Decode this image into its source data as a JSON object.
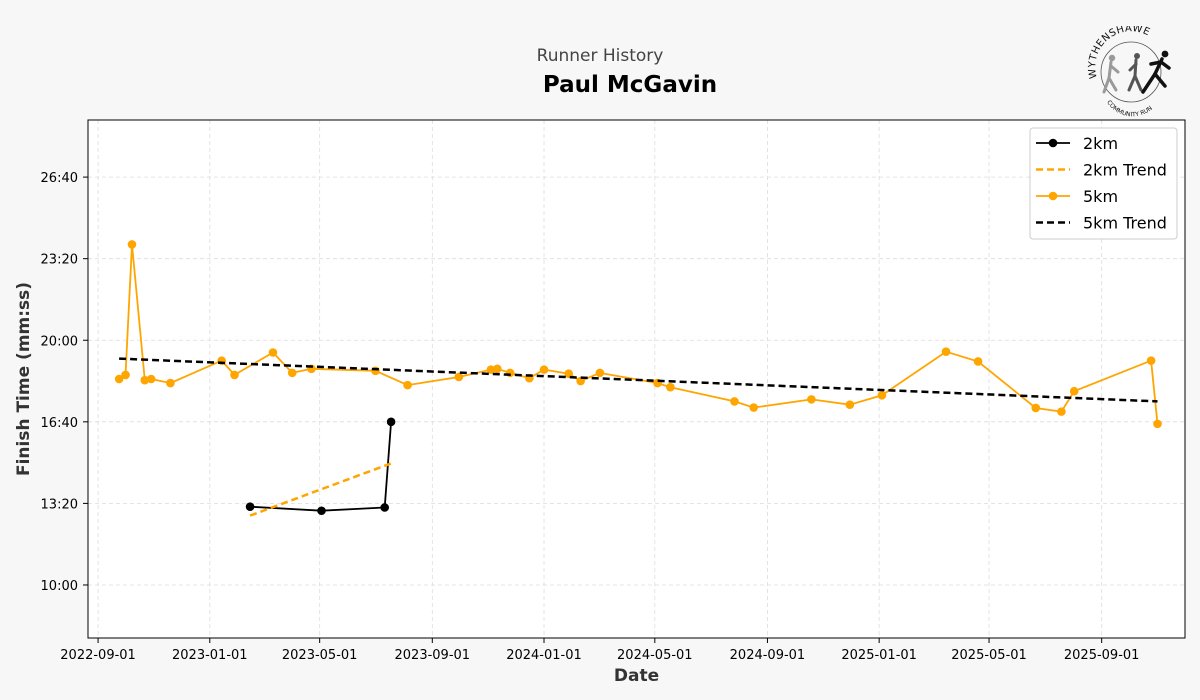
{
  "header": {
    "subtitle": "Runner History",
    "title": "Paul McGavin"
  },
  "logo": {
    "text_top": "WYTHENSHAWE",
    "text_bottom": "COMMUNITY RUN"
  },
  "colors": {
    "background": "#f7f7f7",
    "series_2km": "#000000",
    "series_5km": "#FFA500",
    "trend_2km": "#FFA500",
    "trend_5km": "#000000"
  },
  "chart_data": {
    "type": "line",
    "xlabel": "Date",
    "ylabel": "Finish Time (mm:ss)",
    "x_ticks": [
      "2022-09-01",
      "2023-01-01",
      "2023-05-01",
      "2023-09-01",
      "2024-01-01",
      "2024-05-01",
      "2024-09-01",
      "2025-01-01",
      "2025-05-01",
      "2025-09-01"
    ],
    "y_ticks": [
      "10:00",
      "13:20",
      "16:40",
      "20:00",
      "23:20",
      "26:40"
    ],
    "xlim": [
      "2022-08-21",
      "2025-12-01"
    ],
    "ylim": [
      "07:50",
      "29:00"
    ],
    "grid": true,
    "legend_position": "top-right",
    "series": [
      {
        "name": "2km",
        "style": "line-marker",
        "color": "#000000",
        "points": [
          {
            "x": "2023-02-14",
            "y": "13:12"
          },
          {
            "x": "2023-05-03",
            "y": "13:02"
          },
          {
            "x": "2023-07-11",
            "y": "13:10"
          },
          {
            "x": "2023-07-18",
            "y": "16:40"
          }
        ]
      },
      {
        "name": "2km Trend",
        "style": "dashed",
        "color": "#FFA500",
        "points": [
          {
            "x": "2023-02-14",
            "y": "12:50"
          },
          {
            "x": "2023-07-18",
            "y": "14:58"
          }
        ]
      },
      {
        "name": "5km",
        "style": "line-marker",
        "color": "#FFA500",
        "points": [
          {
            "x": "2022-09-24",
            "y": "18:25"
          },
          {
            "x": "2022-10-01",
            "y": "18:35"
          },
          {
            "x": "2022-10-08",
            "y": "23:55"
          },
          {
            "x": "2022-10-22",
            "y": "18:22"
          },
          {
            "x": "2022-10-29",
            "y": "18:25"
          },
          {
            "x": "2022-11-19",
            "y": "18:15"
          },
          {
            "x": "2023-01-14",
            "y": "19:10"
          },
          {
            "x": "2023-01-28",
            "y": "18:35"
          },
          {
            "x": "2023-03-11",
            "y": "19:30"
          },
          {
            "x": "2023-04-01",
            "y": "18:40"
          },
          {
            "x": "2023-04-22",
            "y": "18:50"
          },
          {
            "x": "2023-07-01",
            "y": "18:45"
          },
          {
            "x": "2023-08-05",
            "y": "18:10"
          },
          {
            "x": "2023-09-30",
            "y": "18:30"
          },
          {
            "x": "2023-11-04",
            "y": "18:48"
          },
          {
            "x": "2023-11-11",
            "y": "18:50"
          },
          {
            "x": "2023-11-25",
            "y": "18:40"
          },
          {
            "x": "2023-12-16",
            "y": "18:27"
          },
          {
            "x": "2024-01-01",
            "y": "18:48"
          },
          {
            "x": "2024-01-28",
            "y": "18:38"
          },
          {
            "x": "2024-02-10",
            "y": "18:20"
          },
          {
            "x": "2024-03-02",
            "y": "18:40"
          },
          {
            "x": "2024-05-04",
            "y": "18:15"
          },
          {
            "x": "2024-05-18",
            "y": "18:05"
          },
          {
            "x": "2024-07-27",
            "y": "17:30"
          },
          {
            "x": "2024-08-17",
            "y": "17:15"
          },
          {
            "x": "2024-10-19",
            "y": "17:35"
          },
          {
            "x": "2024-11-30",
            "y": "17:22"
          },
          {
            "x": "2025-01-04",
            "y": "17:45"
          },
          {
            "x": "2025-03-15",
            "y": "19:32"
          },
          {
            "x": "2025-04-19",
            "y": "19:08"
          },
          {
            "x": "2025-06-21",
            "y": "17:14"
          },
          {
            "x": "2025-07-19",
            "y": "17:05"
          },
          {
            "x": "2025-08-02",
            "y": "17:55"
          },
          {
            "x": "2025-10-25",
            "y": "19:10"
          },
          {
            "x": "2025-11-01",
            "y": "16:35"
          }
        ]
      },
      {
        "name": "5km Trend",
        "style": "dashed",
        "color": "#000000",
        "points": [
          {
            "x": "2022-09-24",
            "y": "19:15"
          },
          {
            "x": "2025-11-01",
            "y": "17:30"
          }
        ]
      }
    ]
  }
}
